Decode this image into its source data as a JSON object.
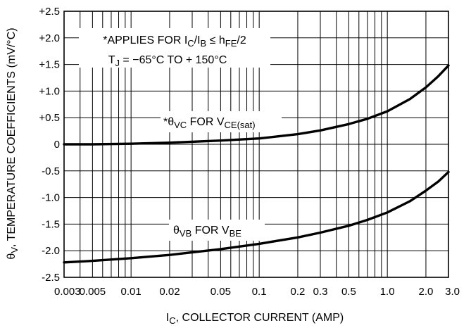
{
  "chart_data": {
    "type": "line",
    "title": "",
    "x_scale": "log",
    "y_scale": "linear",
    "xlim": [
      0.003,
      3.0
    ],
    "ylim": [
      -2.5,
      2.5
    ],
    "grid": true,
    "xlabel_prefix": "I",
    "xlabel_sub": "C",
    "xlabel_rest": ", COLLECTOR CURRENT (AMP)",
    "ylabel_theta": "θ",
    "ylabel_sub": "V",
    "ylabel_rest": ", TEMPERATURE COEFFICIENTS (mV/°C)",
    "x_ticks": [
      {
        "value": 0.003,
        "label": "0.003"
      },
      {
        "value": 0.005,
        "label": "0.005"
      },
      {
        "value": 0.01,
        "label": "0.01"
      },
      {
        "value": 0.02,
        "label": "0.02"
      },
      {
        "value": 0.05,
        "label": "0.05"
      },
      {
        "value": 0.1,
        "label": "0.1"
      },
      {
        "value": 0.2,
        "label": "0.2"
      },
      {
        "value": 0.3,
        "label": "0.3"
      },
      {
        "value": 0.5,
        "label": "0.5"
      },
      {
        "value": 1.0,
        "label": "1.0"
      },
      {
        "value": 2.0,
        "label": "2.0"
      },
      {
        "value": 3.0,
        "label": "3.0"
      }
    ],
    "y_ticks": [
      {
        "value": 2.5,
        "label": "+2.5"
      },
      {
        "value": 2.0,
        "label": "+2.0"
      },
      {
        "value": 1.5,
        "label": "+1.5"
      },
      {
        "value": 1.0,
        "label": "+1.0"
      },
      {
        "value": 0.5,
        "label": "+0.5"
      },
      {
        "value": 0.0,
        "label": "0"
      },
      {
        "value": -0.5,
        "label": "-0.5"
      },
      {
        "value": -1.0,
        "label": "-1.0"
      },
      {
        "value": -1.5,
        "label": "-1.5"
      },
      {
        "value": -2.0,
        "label": "-2.0"
      },
      {
        "value": -2.5,
        "label": "-2.5"
      }
    ],
    "note_line1": {
      "parts": [
        "*APPLIES FOR I",
        "C",
        "/I",
        "B",
        " ≤ h",
        "FE",
        "/2"
      ]
    },
    "note_line2": {
      "parts": [
        "T",
        "J",
        " = −65°C TO + 150°C"
      ]
    },
    "series": [
      {
        "label_parts": [
          "*θ",
          "VC",
          " FOR V",
          "CE(sat)"
        ],
        "x": [
          0.003,
          0.005,
          0.01,
          0.02,
          0.05,
          0.1,
          0.2,
          0.3,
          0.5,
          0.7,
          1.0,
          1.5,
          2.0,
          2.5,
          3.0
        ],
        "y": [
          0.0,
          0.0,
          0.01,
          0.03,
          0.07,
          0.11,
          0.19,
          0.26,
          0.38,
          0.48,
          0.62,
          0.85,
          1.07,
          1.28,
          1.48
        ]
      },
      {
        "label_parts": [
          "θ",
          "VB",
          " FOR V",
          "BE"
        ],
        "x": [
          0.003,
          0.005,
          0.01,
          0.02,
          0.05,
          0.1,
          0.2,
          0.3,
          0.5,
          0.7,
          1.0,
          1.5,
          2.0,
          2.5,
          3.0
        ],
        "y": [
          -2.22,
          -2.19,
          -2.14,
          -2.08,
          -1.97,
          -1.87,
          -1.75,
          -1.66,
          -1.53,
          -1.42,
          -1.28,
          -1.07,
          -0.87,
          -0.7,
          -0.52
        ]
      }
    ]
  }
}
